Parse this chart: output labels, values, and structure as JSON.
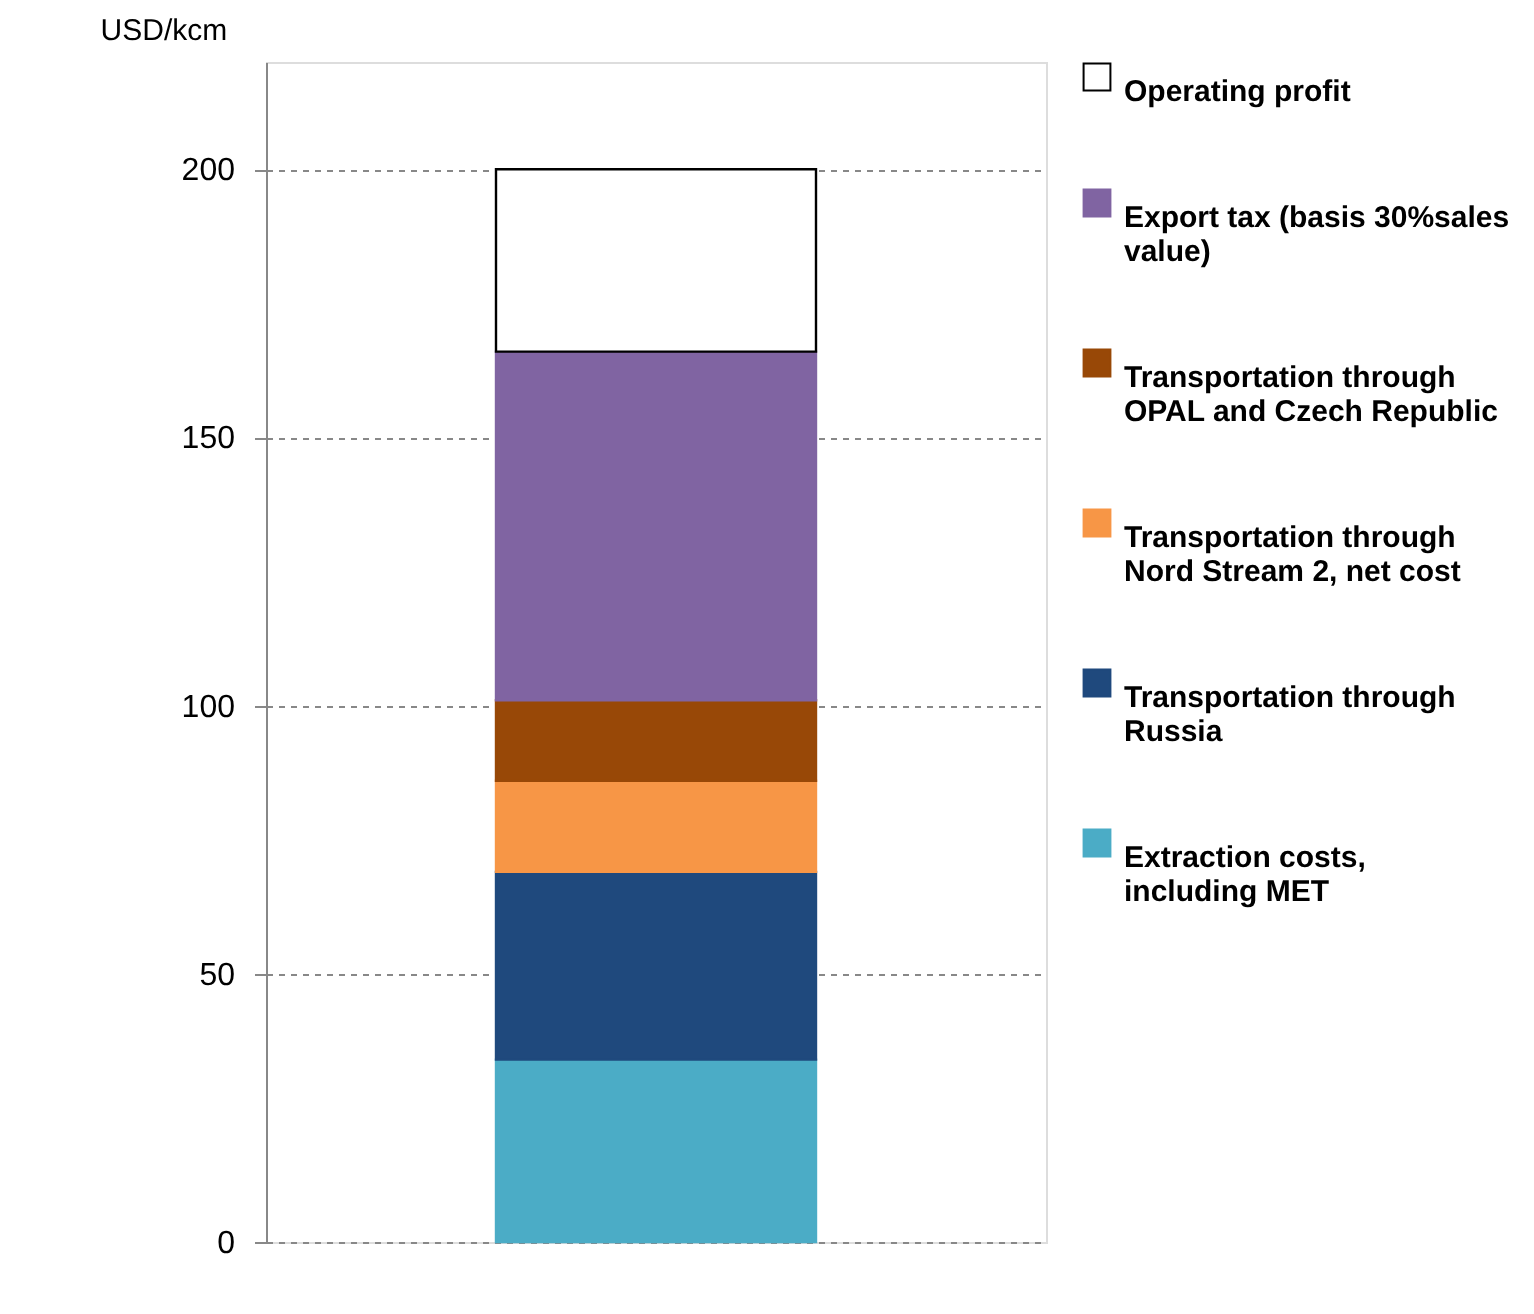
{
  "chart_data": {
    "type": "bar",
    "stacked": true,
    "ylabel": "USD/kcm",
    "categories": [
      null
    ],
    "series": [
      {
        "name": "Extraction costs, including MET",
        "color": "#4bacc6",
        "values": [
          34
        ]
      },
      {
        "name": "Transportation through Russia",
        "color": "#1f497d",
        "values": [
          35
        ]
      },
      {
        "name": "Transportation through Nord Stream 2, net cost",
        "color": "#f79646",
        "values": [
          17
        ]
      },
      {
        "name": "Transportation through OPAL and Czech Republic",
        "color": "#984807",
        "values": [
          15
        ]
      },
      {
        "name": "Export tax (basis 30%sales value)",
        "color": "#8064a2",
        "values": [
          65
        ]
      },
      {
        "name": "Operating profit",
        "color": "#ffffff",
        "values": [
          34
        ]
      }
    ],
    "ylim": [
      0,
      220
    ],
    "yticks": [
      0,
      50,
      100,
      150,
      200
    ],
    "grid": "y",
    "legend": "right"
  }
}
